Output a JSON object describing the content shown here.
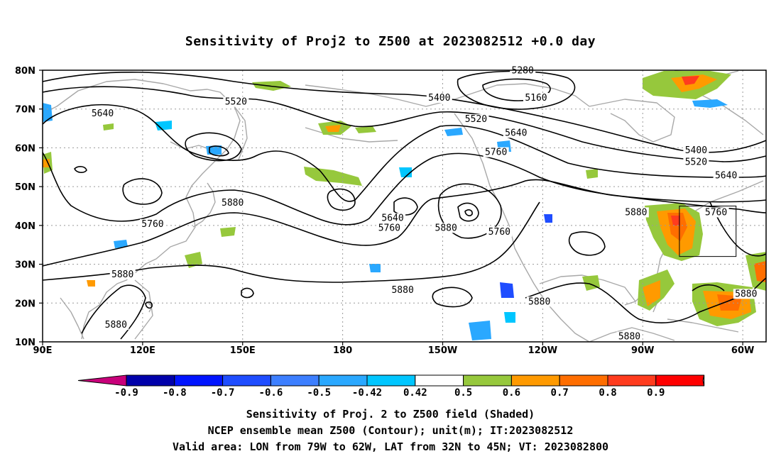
{
  "title": "Sensitivity of Proj2 to Z500 at 2023082512 +0.0 day",
  "map": {
    "lat_range": [
      10,
      80
    ],
    "lon_range_east": [
      90,
      307
    ],
    "lat_labels": [
      {
        "lat": 80,
        "text": "80N"
      },
      {
        "lat": 70,
        "text": "70N"
      },
      {
        "lat": 60,
        "text": "60N"
      },
      {
        "lat": 50,
        "text": "50N"
      },
      {
        "lat": 40,
        "text": "40N"
      },
      {
        "lat": 30,
        "text": "30N"
      },
      {
        "lat": 20,
        "text": "20N"
      },
      {
        "lat": 10,
        "text": "10N"
      }
    ],
    "lon_labels": [
      {
        "lon": 90,
        "text": "90E"
      },
      {
        "lon": 120,
        "text": "120E"
      },
      {
        "lon": 150,
        "text": "150E"
      },
      {
        "lon": 180,
        "text": "180"
      },
      {
        "lon": 210,
        "text": "150W"
      },
      {
        "lon": 240,
        "text": "120W"
      },
      {
        "lon": 270,
        "text": "90W"
      },
      {
        "lon": 300,
        "text": "60W"
      }
    ],
    "valid_box": {
      "lon_west": 281,
      "lon_east": 298,
      "lat_south": 32,
      "lat_north": 45
    },
    "contour_labels": [
      {
        "text": "5640",
        "lon": 108,
        "lat": 68.5
      },
      {
        "text": "5520",
        "lon": 148,
        "lat": 71.5
      },
      {
        "text": "5400",
        "lon": 209,
        "lat": 72.5
      },
      {
        "text": "5280",
        "lon": 234,
        "lat": 79.5
      },
      {
        "text": "5160",
        "lon": 238,
        "lat": 72.5
      },
      {
        "text": "5520",
        "lon": 220,
        "lat": 67
      },
      {
        "text": "5640",
        "lon": 232,
        "lat": 63.5
      },
      {
        "text": "5760",
        "lon": 226,
        "lat": 58.5
      },
      {
        "text": "5400",
        "lon": 286,
        "lat": 59
      },
      {
        "text": "5520",
        "lon": 286,
        "lat": 56
      },
      {
        "text": "5640",
        "lon": 295,
        "lat": 52.5
      },
      {
        "text": "5880",
        "lon": 147,
        "lat": 45.5
      },
      {
        "text": "5760",
        "lon": 123,
        "lat": 40
      },
      {
        "text": "5640",
        "lon": 195,
        "lat": 41.5
      },
      {
        "text": "5760",
        "lon": 194,
        "lat": 39
      },
      {
        "text": "5880",
        "lon": 211,
        "lat": 39
      },
      {
        "text": "5760",
        "lon": 227,
        "lat": 38
      },
      {
        "text": "5880",
        "lon": 268,
        "lat": 43
      },
      {
        "text": "5760",
        "lon": 292,
        "lat": 43
      },
      {
        "text": "5880",
        "lon": 114,
        "lat": 27
      },
      {
        "text": "5880",
        "lon": 198,
        "lat": 23
      },
      {
        "text": "5880",
        "lon": 239,
        "lat": 20
      },
      {
        "text": "5880",
        "lon": 112,
        "lat": 14
      },
      {
        "text": "5880",
        "lon": 301,
        "lat": 22
      },
      {
        "text": "5880",
        "lon": 266,
        "lat": 11
      }
    ]
  },
  "colorbar": {
    "colors": [
      "#c8007a",
      "#0000aa",
      "#0014ff",
      "#1f4dff",
      "#3d7fff",
      "#2aa8ff",
      "#00c6ff",
      "#ffffff",
      "#96c83c",
      "#ff9a00",
      "#ff6e00",
      "#ff3c1e",
      "#ff0000",
      "#ffa0c8"
    ],
    "labels": [
      "-0.9",
      "-0.8",
      "-0.7",
      "-0.6",
      "-0.5",
      "-0.42",
      "0.42",
      "0.5",
      "0.6",
      "0.7",
      "0.8",
      "0.9"
    ]
  },
  "shading_colors": {
    "green": "#96c83c",
    "orange": "#ff9a00",
    "dark_orange": "#ff6e00",
    "red": "#ff3c1e",
    "light_blue": "#2aa8ff",
    "cyan": "#00c6ff",
    "blue": "#1f4dff",
    "land_outline": "#a8a8a8",
    "contour": "#000000",
    "grid": "#9a9a9a"
  },
  "caption": {
    "line1": "Sensitivity of Proj. 2 to Z500 field (Shaded)",
    "line2": "NCEP ensemble mean Z500 (Contour); unit(m); IT:2023082512",
    "line3": "Valid area: LON from 79W to 62W, LAT from 32N to 45N; VT: 2023082800"
  }
}
